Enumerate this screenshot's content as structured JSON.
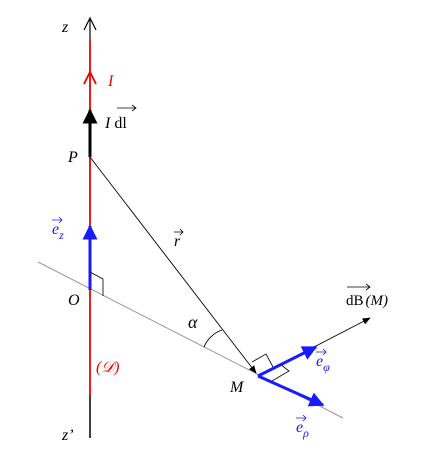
{
  "labels": {
    "z": "z",
    "current": "I",
    "element": {
      "I": "I",
      "dl": "dl"
    },
    "P": "P",
    "ez": {
      "base": "e",
      "sub": "z"
    },
    "r": "r",
    "O": "O",
    "alpha": "α",
    "field": {
      "base": "dB",
      "arg": "(M)"
    },
    "M": "M",
    "ephi": {
      "base": "e",
      "sub": "φ"
    },
    "line": "(𝒟)",
    "erho": {
      "base": "e",
      "sub": "ρ"
    },
    "z_prime": "z’"
  }
}
